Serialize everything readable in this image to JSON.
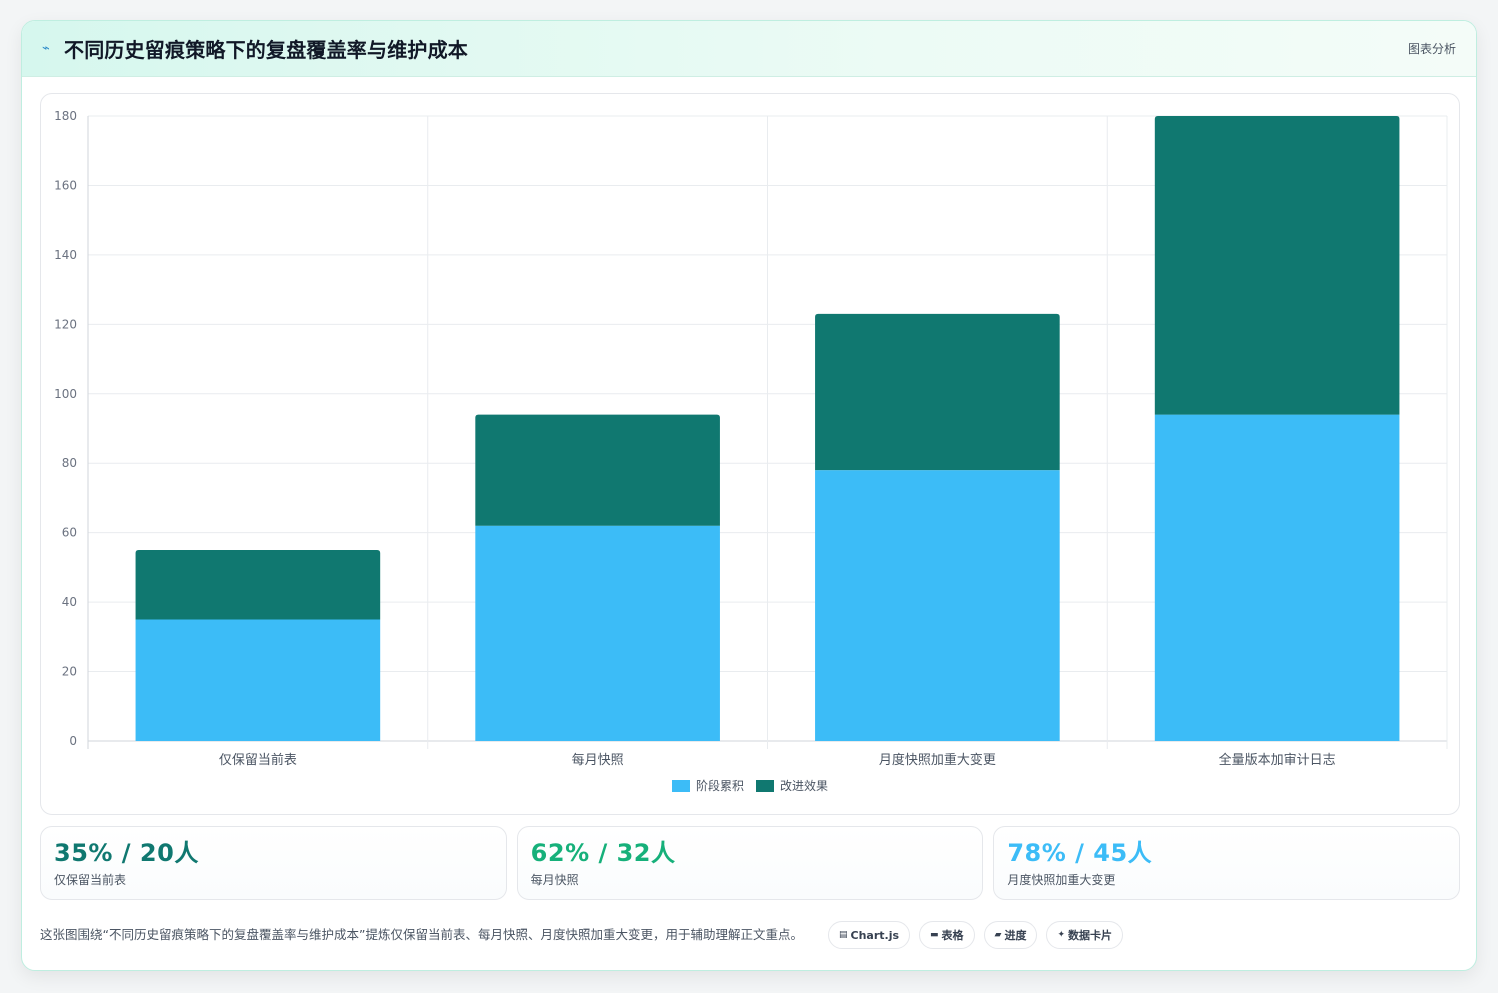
{
  "header": {
    "title": "不同历史留痕策略下的复盘覆盖率与维护成本",
    "tag": "图表分析",
    "icon": "sparkline-icon"
  },
  "chart_data": {
    "type": "bar",
    "stacked": true,
    "categories": [
      "仅保留当前表",
      "每月快照",
      "月度快照加重大变更",
      "全量版本加审计日志"
    ],
    "series": [
      {
        "name": "阶段累积",
        "values": [
          35,
          62,
          78,
          94
        ],
        "color": "#3cbcf7"
      },
      {
        "name": "改进效果",
        "values": [
          20,
          32,
          45,
          86
        ],
        "color": "#107870"
      }
    ],
    "ylim": [
      0,
      180
    ],
    "yticks": [
      0,
      20,
      40,
      60,
      80,
      100,
      120,
      140,
      160,
      180
    ],
    "grid": true,
    "legend_position": "bottom"
  },
  "cards": [
    {
      "value": "35% / 20人",
      "label": "仅保留当前表",
      "color": "#107870"
    },
    {
      "value": "62% / 32人",
      "label": "每月快照",
      "color": "#16b07a"
    },
    {
      "value": "78% / 45人",
      "label": "月度快照加重大变更",
      "color": "#3cbcf7"
    }
  ],
  "footer": {
    "description": "这张图围绕“不同历史留痕策略下的复盘覆盖率与维护成本”提炼仅保留当前表、每月快照、月度快照加重大变更，用于辅助理解正文重点。",
    "chips": [
      {
        "label": "Chart.js",
        "icon": "chart-icon"
      },
      {
        "label": "表格",
        "icon": "table-icon"
      },
      {
        "label": "进度",
        "icon": "progress-icon"
      },
      {
        "label": "数据卡片",
        "icon": "sparkle-icon"
      }
    ]
  }
}
